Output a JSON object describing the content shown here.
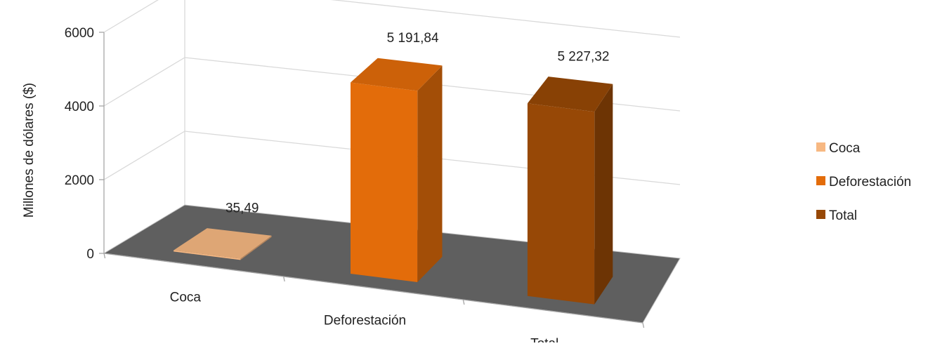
{
  "chart_data": {
    "type": "bar",
    "title": "",
    "xlabel": "",
    "ylabel": "Millones de dólares ($)",
    "ylim": [
      0,
      6000
    ],
    "yticks": [
      0,
      2000,
      4000,
      6000
    ],
    "grid": true,
    "legend_position": "right",
    "categories": [
      "Coca",
      "Deforestación",
      "Total"
    ],
    "values": [
      35.49,
      5191.84,
      5227.32
    ],
    "data_labels": [
      "35,49",
      "5 191,84",
      "5 227,32"
    ],
    "colors": [
      "#f7b882",
      "#e36c0a",
      "#974806"
    ],
    "floor_color": "#5f5f5f",
    "grid_color": "#d9d9d9",
    "legend": [
      {
        "name": "Coca",
        "color": "#f7b882"
      },
      {
        "name": "Deforestación",
        "color": "#e36c0a"
      },
      {
        "name": "Total",
        "color": "#974806"
      }
    ]
  }
}
